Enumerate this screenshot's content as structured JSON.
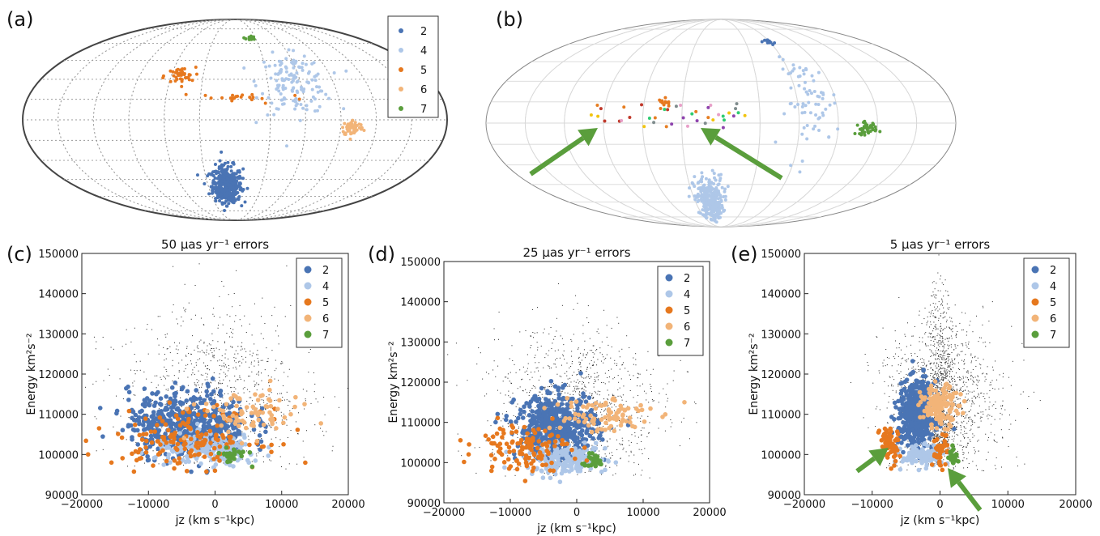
{
  "colors": {
    "2": "#4a74b4",
    "4": "#aec7e8",
    "5": "#e6781e",
    "6": "#f2b478",
    "7": "#5a9e3c",
    "arrow": "#5a9e3c",
    "bg_points": "#222222"
  },
  "chart_data": [
    {
      "type": "scatter",
      "projection": "mollweide",
      "label": "(a)",
      "grid": true,
      "legend": {
        "position": "top-right",
        "entries": [
          "2",
          "4",
          "5",
          "6",
          "7"
        ]
      },
      "clusters": [
        {
          "name": "2",
          "lon": -0.15,
          "lat": -0.72,
          "spread": [
            0.14,
            0.12
          ],
          "n": 420
        },
        {
          "name": "4",
          "lon": 0.95,
          "lat": 0.38,
          "spread": [
            0.28,
            0.16
          ],
          "n": 140
        },
        {
          "name": "5",
          "lon": -0.9,
          "lat": 0.45,
          "spread": [
            0.12,
            0.05
          ],
          "n": 40
        },
        {
          "name": "5",
          "lon": 0.1,
          "lat": 0.22,
          "spread": [
            0.5,
            0.03
          ],
          "n": 22
        },
        {
          "name": "6",
          "lon": 1.75,
          "lat": -0.08,
          "spread": [
            0.08,
            0.04
          ],
          "n": 60
        },
        {
          "name": "7",
          "lon": 0.35,
          "lat": 0.95,
          "spread": [
            0.05,
            0.02
          ],
          "n": 18
        }
      ]
    },
    {
      "type": "scatter",
      "projection": "mollweide",
      "label": "(b)",
      "grid": true,
      "clusters": [
        {
          "name": "4",
          "lon": -0.2,
          "lat": -0.85,
          "spread": [
            0.12,
            0.16
          ],
          "n": 300
        },
        {
          "name": "4",
          "lon": 1.25,
          "lat": 0.2,
          "spread": [
            0.18,
            0.22
          ],
          "n": 70
        },
        {
          "name": "2",
          "lon": 0.95,
          "lat": 0.9,
          "spread": [
            0.04,
            0.02
          ],
          "n": 14
        },
        {
          "name": "7",
          "lon": 1.95,
          "lat": -0.05,
          "spread": [
            0.07,
            0.03
          ],
          "n": 40
        },
        {
          "name": "5",
          "lon": -0.75,
          "lat": 0.2,
          "spread": [
            0.05,
            0.02
          ],
          "n": 12
        }
      ],
      "arrows": 2
    },
    {
      "type": "scatter",
      "label": "(c)",
      "title": "50 μas yr⁻¹ errors",
      "xlabel": "jz (km s⁻¹kpc)",
      "ylabel": "Energy km²s⁻²",
      "xlim": [
        -20000,
        20000
      ],
      "ylim": [
        90000,
        150000
      ],
      "xticks": [
        "−20000",
        "−10000",
        "0",
        "10000",
        "20000"
      ],
      "yticks": [
        "90000",
        "100000",
        "110000",
        "120000",
        "130000",
        "140000",
        "150000"
      ],
      "legend": {
        "position": "top-right",
        "entries": [
          "2",
          "4",
          "5",
          "6",
          "7"
        ]
      },
      "clusters": [
        {
          "name": "2",
          "x": -4000,
          "y": 108000,
          "spread": [
            4500,
            4000
          ],
          "n": 520
        },
        {
          "name": "4",
          "x": -1000,
          "y": 101000,
          "spread": [
            4000,
            2000
          ],
          "n": 180
        },
        {
          "name": "5",
          "x": -4000,
          "y": 104000,
          "spread": [
            5500,
            3500
          ],
          "n": 160
        },
        {
          "name": "6",
          "x": 5000,
          "y": 110000,
          "spread": [
            4000,
            3000
          ],
          "n": 80
        },
        {
          "name": "7",
          "x": 2500,
          "y": 100000,
          "spread": [
            1200,
            1000
          ],
          "n": 30
        }
      ],
      "background": {
        "x": 0,
        "y": 115000,
        "spread": [
          8000,
          14000
        ],
        "n": 900
      }
    },
    {
      "type": "scatter",
      "label": "(d)",
      "title": "25 μas yr⁻¹ errors",
      "xlabel": "jz (km s⁻¹kpc)",
      "ylabel": "Energy km²s⁻²",
      "xlim": [
        -20000,
        20000
      ],
      "ylim": [
        90000,
        150000
      ],
      "xticks": [
        "−20000",
        "−10000",
        "0",
        "10000",
        "20000"
      ],
      "yticks": [
        "90000",
        "100000",
        "110000",
        "120000",
        "130000",
        "140000",
        "150000"
      ],
      "legend": {
        "position": "top-right",
        "entries": [
          "2",
          "4",
          "5",
          "6",
          "7"
        ]
      },
      "clusters": [
        {
          "name": "2",
          "x": -3000,
          "y": 109000,
          "spread": [
            3000,
            4000
          ],
          "n": 520
        },
        {
          "name": "4",
          "x": -1500,
          "y": 100500,
          "spread": [
            3000,
            1800
          ],
          "n": 180
        },
        {
          "name": "5",
          "x": -8000,
          "y": 104000,
          "spread": [
            3500,
            3000
          ],
          "n": 120
        },
        {
          "name": "6",
          "x": 3000,
          "y": 112000,
          "spread": [
            4000,
            2500
          ],
          "n": 90
        },
        {
          "name": "7",
          "x": 2500,
          "y": 100500,
          "spread": [
            900,
            800
          ],
          "n": 30
        }
      ],
      "background": {
        "x": 0,
        "y": 113000,
        "spread": [
          7000,
          13000
        ],
        "n": 1100
      }
    },
    {
      "type": "scatter",
      "label": "(e)",
      "title": "5 μas yr⁻¹ errors",
      "xlabel": "jz (km s⁻¹kpc)",
      "ylabel": "Energy km²s⁻²",
      "xlim": [
        -20000,
        20000
      ],
      "ylim": [
        90000,
        150000
      ],
      "xticks": [
        "−20000",
        "−10000",
        "0",
        "10000",
        "20000"
      ],
      "yticks": [
        "90000",
        "100000",
        "110000",
        "120000",
        "130000",
        "140000",
        "150000"
      ],
      "legend": {
        "position": "top-right",
        "entries": [
          "2",
          "4",
          "5",
          "6",
          "7"
        ]
      },
      "clusters": [
        {
          "name": "2",
          "x": -3500,
          "y": 110000,
          "spread": [
            1300,
            4000
          ],
          "n": 520
        },
        {
          "name": "4",
          "x": -2500,
          "y": 99500,
          "spread": [
            1500,
            1200
          ],
          "n": 120
        },
        {
          "name": "5",
          "x": -7500,
          "y": 102500,
          "spread": [
            700,
            2500
          ],
          "n": 60
        },
        {
          "name": "5",
          "x": 0,
          "y": 101000,
          "spread": [
            600,
            2000
          ],
          "n": 40
        },
        {
          "name": "6",
          "x": 0,
          "y": 112000,
          "spread": [
            1400,
            2500
          ],
          "n": 140
        },
        {
          "name": "7",
          "x": 2000,
          "y": 100000,
          "spread": [
            300,
            1200
          ],
          "n": 20
        }
      ],
      "background": {
        "x": 0,
        "y": 113000,
        "spread": [
          4500,
          12000
        ],
        "n": 1400
      },
      "arrows": 2
    }
  ]
}
